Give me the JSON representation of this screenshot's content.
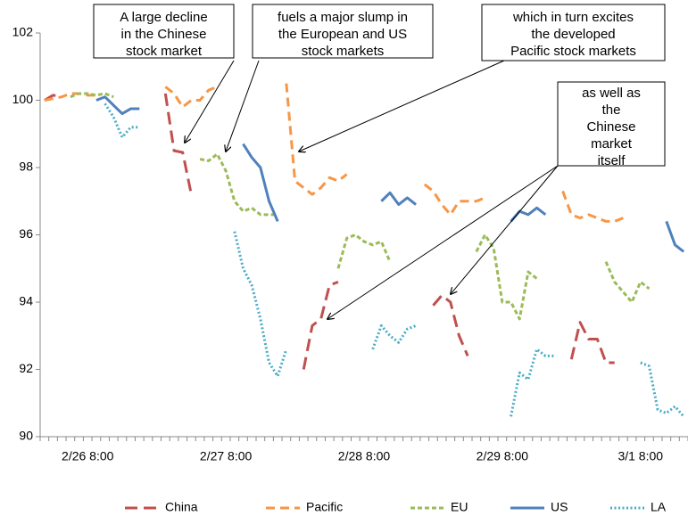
{
  "chart_data": {
    "type": "line",
    "categories": [
      null,
      null,
      null,
      null,
      null,
      "2/26 8:00",
      null,
      null,
      null,
      null,
      null,
      null,
      null,
      null,
      null,
      null,
      null,
      null,
      null,
      null,
      null,
      "2/27 8:00",
      null,
      null,
      null,
      null,
      null,
      null,
      null,
      null,
      null,
      null,
      null,
      null,
      null,
      null,
      null,
      "2/28 8:00",
      null,
      null,
      null,
      null,
      null,
      null,
      null,
      null,
      null,
      null,
      null,
      null,
      null,
      null,
      null,
      "2/29 8:00",
      null,
      null,
      null,
      null,
      null,
      null,
      null,
      null,
      null,
      null,
      null,
      null,
      null,
      null,
      null,
      "3/1 8:00",
      null,
      null,
      null,
      null,
      null
    ],
    "ylim": [
      90,
      102
    ],
    "yticks": [
      90,
      92,
      94,
      96,
      98,
      100,
      102
    ],
    "grid": false,
    "legend": "bottom",
    "series": [
      {
        "name": "China",
        "color": "#c0504d",
        "dash": "dashed-long",
        "values": [
          100.0,
          100.15,
          100.1,
          null,
          null,
          null,
          null,
          null,
          null,
          null,
          null,
          null,
          null,
          null,
          100.2,
          98.5,
          98.45,
          97.2,
          null,
          null,
          null,
          null,
          null,
          null,
          null,
          null,
          null,
          null,
          null,
          null,
          92.0,
          93.3,
          93.5,
          94.5,
          94.6,
          null,
          null,
          null,
          null,
          null,
          null,
          null,
          null,
          null,
          null,
          93.9,
          94.2,
          94.0,
          93.0,
          92.4,
          null,
          null,
          null,
          null,
          null,
          null,
          null,
          null,
          null,
          null,
          null,
          92.3,
          93.4,
          92.9,
          92.9,
          92.2,
          92.2,
          null,
          null,
          null,
          null,
          null,
          null,
          null,
          null
        ]
      },
      {
        "name": "Pacific",
        "color": "#f79646",
        "dash": "dashed",
        "values": [
          100.0,
          100.05,
          100.1,
          100.2,
          100.2,
          100.15,
          100.15,
          null,
          null,
          null,
          null,
          null,
          null,
          null,
          100.4,
          100.2,
          99.8,
          100.0,
          100.0,
          100.3,
          100.4,
          null,
          null,
          null,
          null,
          null,
          null,
          null,
          100.5,
          97.6,
          97.4,
          97.2,
          97.4,
          97.7,
          97.6,
          97.8,
          null,
          null,
          null,
          null,
          null,
          null,
          null,
          null,
          97.5,
          97.3,
          96.9,
          96.6,
          97.0,
          97.0,
          97.0,
          97.1,
          null,
          null,
          null,
          null,
          null,
          null,
          null,
          null,
          97.3,
          96.6,
          96.5,
          96.6,
          96.5,
          96.4,
          96.4,
          96.5,
          null,
          null,
          null,
          null,
          null,
          null,
          null
        ]
      },
      {
        "name": "EU",
        "color": "#9bbb59",
        "dash": "dashed-short",
        "values": [
          null,
          null,
          null,
          100.1,
          100.2,
          100.2,
          100.15,
          100.2,
          100.1,
          null,
          null,
          null,
          null,
          null,
          null,
          null,
          null,
          null,
          98.25,
          98.2,
          98.4,
          97.9,
          97.0,
          96.7,
          96.8,
          96.6,
          96.6,
          96.6,
          null,
          null,
          null,
          null,
          null,
          null,
          95.0,
          95.9,
          96.0,
          95.8,
          95.7,
          95.8,
          95.2,
          null,
          null,
          null,
          null,
          null,
          null,
          null,
          null,
          null,
          95.5,
          96.0,
          95.6,
          94.0,
          94.0,
          93.5,
          94.9,
          94.7,
          null,
          null,
          null,
          null,
          null,
          null,
          null,
          95.2,
          94.6,
          94.3,
          94.0,
          94.6,
          94.4,
          null,
          null,
          null,
          null
        ]
      },
      {
        "name": "US",
        "color": "#4f81bd",
        "dash": "solid",
        "values": [
          null,
          null,
          null,
          null,
          null,
          null,
          100.0,
          100.1,
          99.85,
          99.6,
          99.75,
          99.75,
          null,
          null,
          null,
          null,
          null,
          null,
          null,
          null,
          null,
          null,
          null,
          98.7,
          98.3,
          98.0,
          97.0,
          96.4,
          null,
          null,
          null,
          null,
          null,
          null,
          null,
          null,
          null,
          null,
          null,
          97.0,
          97.25,
          96.9,
          97.1,
          96.9,
          null,
          null,
          null,
          null,
          null,
          null,
          null,
          null,
          null,
          null,
          96.4,
          96.7,
          96.6,
          96.8,
          96.6,
          null,
          null,
          null,
          null,
          null,
          null,
          null,
          null,
          null,
          null,
          null,
          null,
          null,
          96.4,
          95.7,
          95.5
        ]
      },
      {
        "name": "LA",
        "color": "#4bacc6",
        "dash": "dotted",
        "values": [
          null,
          null,
          null,
          null,
          null,
          null,
          null,
          99.9,
          99.5,
          98.9,
          99.2,
          99.2,
          null,
          null,
          null,
          null,
          null,
          null,
          null,
          null,
          null,
          null,
          96.1,
          95.0,
          94.5,
          93.5,
          92.2,
          91.8,
          92.6,
          null,
          null,
          null,
          null,
          null,
          null,
          null,
          null,
          null,
          92.6,
          93.3,
          93.0,
          92.8,
          93.2,
          93.3,
          null,
          null,
          null,
          null,
          null,
          null,
          null,
          null,
          null,
          null,
          90.6,
          91.9,
          91.7,
          92.6,
          92.4,
          92.4,
          null,
          null,
          null,
          null,
          null,
          null,
          null,
          null,
          null,
          92.2,
          92.1,
          90.8,
          90.7,
          90.9,
          90.6
        ]
      }
    ],
    "annotations": [
      {
        "lines": [
          "A large decline",
          "in the Chinese",
          "stock market"
        ]
      },
      {
        "lines": [
          "fuels a major slump in",
          "the European and US",
          "stock markets"
        ]
      },
      {
        "lines": [
          "which in turn excites",
          "the developed",
          "Pacific stock markets"
        ]
      },
      {
        "lines": [
          "as well as",
          "the",
          "Chinese",
          "market",
          "itself"
        ]
      }
    ]
  }
}
